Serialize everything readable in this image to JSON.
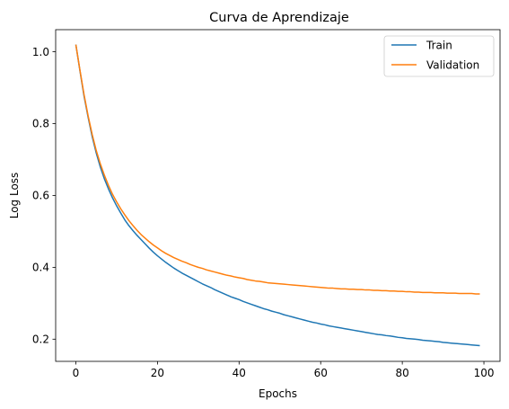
{
  "chart_data": {
    "type": "line",
    "title": "Curva de Aprendizaje",
    "xlabel": "Epochs",
    "ylabel": "Log Loss",
    "xlim": [
      -4.95,
      103.95
    ],
    "ylim": [
      0.1382,
      1.0616
    ],
    "xticks": [
      0,
      20,
      40,
      60,
      80,
      100
    ],
    "xtick_labels": [
      "0",
      "20",
      "40",
      "60",
      "80",
      "100"
    ],
    "yticks": [
      0.2,
      0.4,
      0.6,
      0.8,
      1.0
    ],
    "ytick_labels": [
      "0.2",
      "0.4",
      "0.6",
      "0.8",
      "1.0"
    ],
    "grid": false,
    "legend_position": "top-right",
    "x": [
      0,
      1,
      2,
      3,
      4,
      5,
      6,
      7,
      8,
      9,
      10,
      11,
      12,
      13,
      14,
      15,
      16,
      17,
      18,
      19,
      20,
      21,
      22,
      23,
      24,
      25,
      26,
      27,
      28,
      29,
      30,
      31,
      32,
      33,
      34,
      35,
      36,
      37,
      38,
      39,
      40,
      41,
      42,
      43,
      44,
      45,
      46,
      47,
      48,
      49,
      50,
      51,
      52,
      53,
      54,
      55,
      56,
      57,
      58,
      59,
      60,
      61,
      62,
      63,
      64,
      65,
      66,
      67,
      68,
      69,
      70,
      71,
      72,
      73,
      74,
      75,
      76,
      77,
      78,
      79,
      80,
      81,
      82,
      83,
      84,
      85,
      86,
      87,
      88,
      89,
      90,
      91,
      92,
      93,
      94,
      95,
      96,
      97,
      98,
      99
    ],
    "series": [
      {
        "name": "Train",
        "color": "#1f77b4",
        "values": [
          1.02,
          0.947,
          0.877,
          0.818,
          0.764,
          0.718,
          0.679,
          0.646,
          0.618,
          0.593,
          0.571,
          0.551,
          0.532,
          0.516,
          0.502,
          0.489,
          0.477,
          0.465,
          0.453,
          0.442,
          0.432,
          0.423,
          0.414,
          0.406,
          0.398,
          0.391,
          0.384,
          0.378,
          0.372,
          0.366,
          0.36,
          0.354,
          0.349,
          0.344,
          0.338,
          0.333,
          0.328,
          0.323,
          0.318,
          0.314,
          0.31,
          0.305,
          0.301,
          0.297,
          0.293,
          0.289,
          0.285,
          0.282,
          0.278,
          0.275,
          0.272,
          0.268,
          0.265,
          0.262,
          0.259,
          0.256,
          0.253,
          0.25,
          0.247,
          0.245,
          0.242,
          0.24,
          0.237,
          0.235,
          0.233,
          0.231,
          0.229,
          0.227,
          0.225,
          0.223,
          0.221,
          0.219,
          0.217,
          0.215,
          0.213,
          0.212,
          0.21,
          0.209,
          0.207,
          0.205,
          0.204,
          0.202,
          0.201,
          0.2,
          0.199,
          0.197,
          0.196,
          0.195,
          0.194,
          0.193,
          0.191,
          0.19,
          0.189,
          0.188,
          0.187,
          0.186,
          0.185,
          0.184,
          0.183,
          0.182
        ]
      },
      {
        "name": "Validation",
        "color": "#ff7f0e",
        "values": [
          1.02,
          0.949,
          0.881,
          0.822,
          0.77,
          0.725,
          0.688,
          0.656,
          0.628,
          0.603,
          0.582,
          0.563,
          0.546,
          0.53,
          0.516,
          0.503,
          0.491,
          0.481,
          0.471,
          0.462,
          0.454,
          0.446,
          0.439,
          0.433,
          0.427,
          0.422,
          0.417,
          0.413,
          0.408,
          0.404,
          0.4,
          0.397,
          0.393,
          0.39,
          0.387,
          0.384,
          0.381,
          0.378,
          0.376,
          0.373,
          0.371,
          0.369,
          0.366,
          0.364,
          0.362,
          0.361,
          0.359,
          0.357,
          0.356,
          0.355,
          0.354,
          0.353,
          0.352,
          0.351,
          0.35,
          0.349,
          0.348,
          0.347,
          0.346,
          0.345,
          0.344,
          0.343,
          0.342,
          0.342,
          0.341,
          0.34,
          0.34,
          0.339,
          0.339,
          0.338,
          0.338,
          0.337,
          0.337,
          0.336,
          0.336,
          0.335,
          0.335,
          0.334,
          0.334,
          0.333,
          0.333,
          0.332,
          0.332,
          0.331,
          0.331,
          0.33,
          0.33,
          0.33,
          0.329,
          0.329,
          0.329,
          0.328,
          0.328,
          0.328,
          0.327,
          0.327,
          0.327,
          0.327,
          0.326,
          0.326
        ]
      }
    ]
  }
}
